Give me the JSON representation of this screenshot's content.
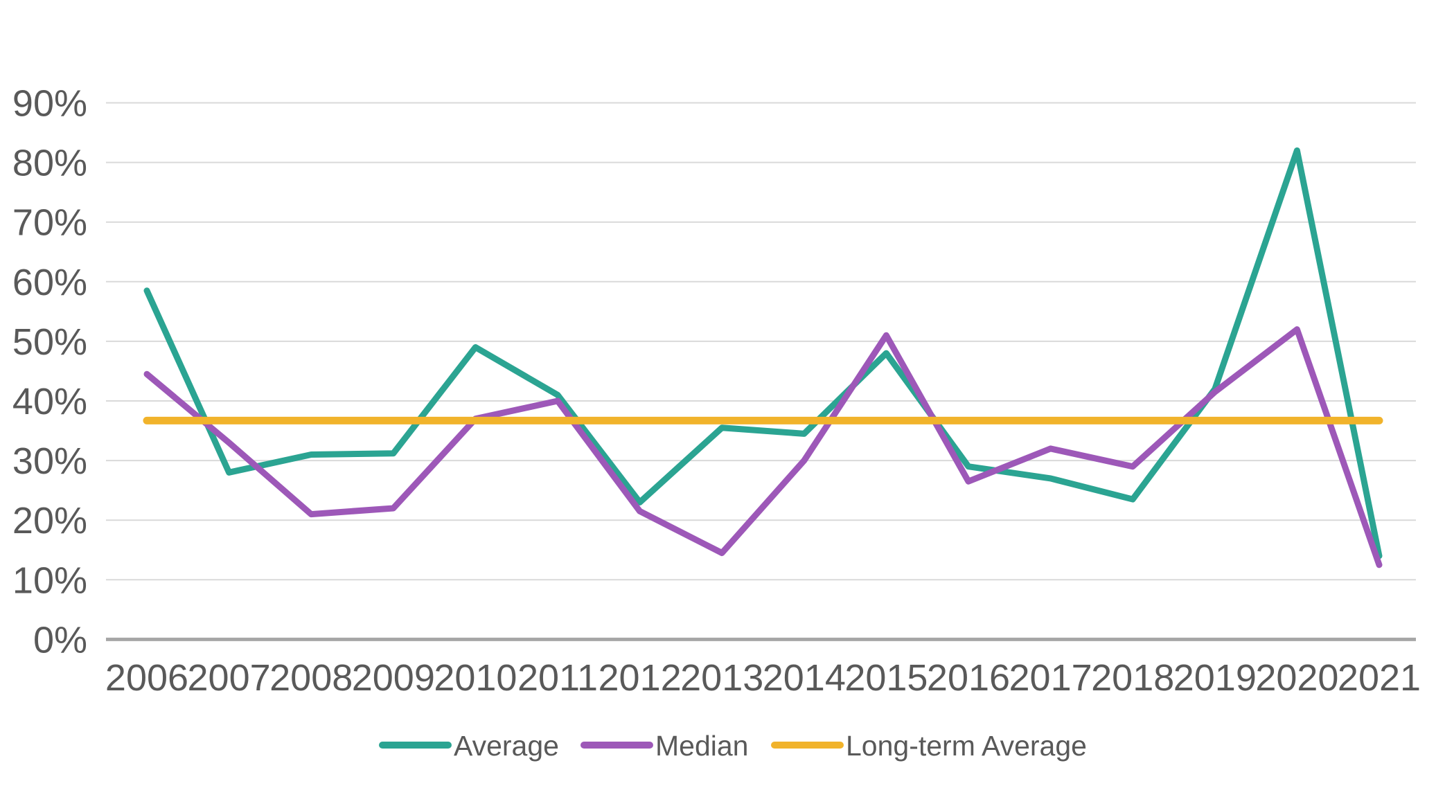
{
  "page": {
    "background": "#ffffff"
  },
  "chart_data": {
    "type": "line",
    "title": "",
    "xlabel": "",
    "ylabel": "",
    "categories": [
      "2006",
      "2007",
      "2008",
      "2009",
      "2010",
      "2011",
      "2012",
      "2013",
      "2014",
      "2015",
      "2016",
      "2017",
      "2018",
      "2019",
      "2020",
      "2021"
    ],
    "series": [
      {
        "name": "Average",
        "color": "#2BA492",
        "stroke_width": 9,
        "values": [
          58.5,
          28,
          31,
          31.2,
          49,
          41,
          23,
          35.5,
          34.5,
          48,
          29,
          27,
          23.5,
          42,
          82,
          14
        ]
      },
      {
        "name": "Median",
        "color": "#9D58B8",
        "stroke_width": 9,
        "values": [
          44.5,
          33,
          21,
          22,
          37,
          40,
          21.5,
          14.5,
          30,
          51,
          26.5,
          32,
          29,
          41.5,
          52,
          12.5
        ]
      },
      {
        "name": "Long-term Average",
        "color": "#F1B32B",
        "stroke_width": 11,
        "values": [
          36.7,
          36.7,
          36.7,
          36.7,
          36.7,
          36.7,
          36.7,
          36.7,
          36.7,
          36.7,
          36.7,
          36.7,
          36.7,
          36.7,
          36.7,
          36.7
        ]
      }
    ],
    "y_ticks": [
      "0%",
      "10%",
      "20%",
      "30%",
      "40%",
      "50%",
      "60%",
      "70%",
      "80%",
      "90%"
    ],
    "ylim": [
      0,
      90
    ],
    "y_tick_step": 10,
    "grid": "horizontal",
    "legend_position": "bottom",
    "colors": {
      "gridline": "#D9D9D9",
      "axis_line": "#A6A6A6",
      "tick_text": "#595959",
      "legend_text": "#595959"
    }
  }
}
